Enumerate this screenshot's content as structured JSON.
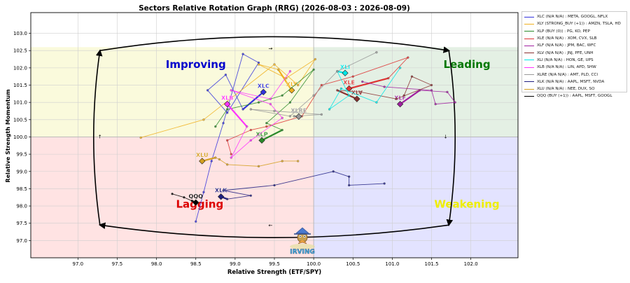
{
  "chart_data": {
    "type": "scatter",
    "title": "Sectors Relative Rotation Graph (RRG) (2026-08-03 : 2026-08-09)",
    "xlabel": "Relative Strength (ETF/SPY)",
    "ylabel": "Relative Strength Momentum",
    "xlim": [
      96.4,
      102.6
    ],
    "ylim": [
      96.5,
      103.6
    ],
    "xticks": [
      97.0,
      97.5,
      98.0,
      98.5,
      99.0,
      99.5,
      100.0,
      100.5,
      101.0,
      101.5,
      102.0
    ],
    "yticks": [
      97.0,
      97.5,
      98.0,
      98.5,
      99.0,
      99.5,
      100.0,
      100.5,
      101.0,
      101.5,
      102.0,
      102.5,
      103.0
    ],
    "grid": true,
    "legend_position": "outside-right",
    "quadrants": [
      {
        "name": "Improving",
        "color": "#0000cc",
        "bg": "#fafadc",
        "label_x": 98.5,
        "label_y": 102.1
      },
      {
        "name": "Leading",
        "color": "#007700",
        "bg": "#e4f0e4",
        "label_x": 101.95,
        "label_y": 102.1
      },
      {
        "name": "Lagging",
        "color": "#dd0000",
        "bg": "#ffe3e3",
        "label_x": 98.55,
        "label_y": 98.05
      },
      {
        "name": "Weakening",
        "color": "#eeee00",
        "bg": "#e3e3ff",
        "label_x": 101.95,
        "label_y": 98.05
      }
    ],
    "series": [
      {
        "name": "XLC (N/A N/A) : META, GOOGL, NFLX",
        "label": "XLC",
        "color": "#3333dd",
        "points": [
          [
            98.5,
            97.55
          ],
          [
            98.6,
            98.4
          ],
          [
            98.7,
            99.3
          ],
          [
            98.85,
            100.4
          ],
          [
            99.1,
            102.4
          ],
          [
            99.3,
            102.15
          ],
          [
            98.9,
            100.7
          ],
          [
            98.65,
            101.35
          ],
          [
            98.88,
            101.8
          ],
          [
            99.1,
            100.8
          ],
          [
            99.36,
            101.3
          ]
        ]
      },
      {
        "name": "XLY (STRONG_BUY (+1)) : AMZN, TSLA, HD",
        "label": "XLY",
        "color": "#f0b020",
        "points": [
          [
            97.8,
            99.98
          ],
          [
            98.6,
            100.5
          ],
          [
            99.5,
            102.1
          ],
          [
            99.8,
            101.5
          ],
          [
            100.02,
            102.25
          ],
          [
            99.65,
            101.7
          ],
          [
            99.3,
            102.1
          ],
          [
            99.55,
            101.95
          ],
          [
            99.72,
            101.35
          ]
        ]
      },
      {
        "name": "XLP (BUY (0)) : PG, KO, PEP",
        "label": "XLP",
        "color": "#2a8a2a",
        "points": [
          [
            98.75,
            100.3
          ],
          [
            98.9,
            100.8
          ],
          [
            99.3,
            101.0
          ],
          [
            99.6,
            101.2
          ],
          [
            100.0,
            101.95
          ],
          [
            99.7,
            101.0
          ],
          [
            99.4,
            100.4
          ],
          [
            99.6,
            100.2
          ],
          [
            99.34,
            99.9
          ]
        ]
      },
      {
        "name": "XLE (N/A N/A) : XOM, CVX, SLB",
        "label": "XLE",
        "color": "#dd3333",
        "points": [
          [
            98.95,
            99.5
          ],
          [
            98.9,
            99.9
          ],
          [
            99.2,
            100.2
          ],
          [
            99.4,
            100.3
          ],
          [
            99.85,
            100.6
          ],
          [
            100.1,
            101.5
          ],
          [
            100.5,
            101.75
          ],
          [
            101.2,
            102.3
          ],
          [
            100.95,
            101.7
          ],
          [
            100.45,
            101.4
          ]
        ]
      },
      {
        "name": "XLF (N/A N/A) : JPM, BAC, WFC",
        "label": "XLF",
        "color": "#a020a0",
        "points": [
          [
            100.62,
            101.6
          ],
          [
            100.9,
            101.45
          ],
          [
            101.5,
            101.35
          ],
          [
            101.55,
            100.95
          ],
          [
            101.8,
            101.0
          ],
          [
            101.7,
            101.3
          ],
          [
            101.35,
            101.35
          ],
          [
            101.1,
            100.95
          ]
        ]
      },
      {
        "name": "XLV (N/A N/A) : JNJ, PFE, UNH",
        "label": "XLV",
        "color": "#8a3030",
        "points": [
          [
            101.15,
            101.2
          ],
          [
            101.25,
            101.75
          ],
          [
            101.5,
            101.5
          ],
          [
            101.05,
            101.1
          ],
          [
            100.6,
            101.3
          ],
          [
            100.3,
            101.35
          ],
          [
            100.55,
            101.1
          ]
        ]
      },
      {
        "name": "XLI (N/A N/A) : HON, GE, UPS",
        "label": "XLI",
        "color": "#00e8e8",
        "points": [
          [
            101.1,
            102.0
          ],
          [
            100.8,
            101.0
          ],
          [
            100.35,
            101.4
          ],
          [
            100.2,
            100.8
          ],
          [
            100.45,
            101.2
          ],
          [
            100.3,
            101.9
          ],
          [
            100.4,
            101.85
          ]
        ]
      },
      {
        "name": "XLB (N/A N/A) : LIN, APD, SHW",
        "label": "XLB",
        "color": "#ff33ff",
        "points": [
          [
            99.7,
            101.9
          ],
          [
            99.45,
            101.1
          ],
          [
            98.95,
            101.35
          ],
          [
            99.45,
            100.95
          ],
          [
            99.6,
            100.55
          ],
          [
            99.2,
            99.9
          ],
          [
            98.95,
            99.4
          ],
          [
            99.15,
            100.3
          ],
          [
            98.9,
            100.95
          ]
        ]
      },
      {
        "name": "XLRE (N/A N/A) : AMT, PLD, CCI",
        "label": "XLRE",
        "color": "#999999",
        "points": [
          [
            100.8,
            102.45
          ],
          [
            100.3,
            101.9
          ],
          [
            100.0,
            101.2
          ],
          [
            99.7,
            100.6
          ],
          [
            99.2,
            100.8
          ],
          [
            99.5,
            100.75
          ],
          [
            100.1,
            100.65
          ],
          [
            99.75,
            100.6
          ],
          [
            99.81,
            100.59
          ]
        ]
      },
      {
        "name": "XLK (N/A N/A) : AAPL, MSFT, NVDA",
        "label": "XLK",
        "color": "#202080",
        "points": [
          [
            100.9,
            98.65
          ],
          [
            100.45,
            98.6
          ],
          [
            100.45,
            98.85
          ],
          [
            100.25,
            99.0
          ],
          [
            99.5,
            98.6
          ],
          [
            98.85,
            98.45
          ],
          [
            99.2,
            98.3
          ],
          [
            98.9,
            98.2
          ],
          [
            98.82,
            98.27
          ]
        ]
      },
      {
        "name": "XLU (N/A N/A) : NEE, DUX, SO",
        "label": "XLU",
        "color": "#d4a020",
        "points": [
          [
            99.8,
            99.3
          ],
          [
            99.6,
            99.3
          ],
          [
            99.3,
            99.15
          ],
          [
            98.9,
            99.2
          ],
          [
            98.8,
            99.35
          ],
          [
            98.75,
            99.4
          ],
          [
            98.58,
            99.3
          ]
        ]
      },
      {
        "name": "QQQ (BUY (+1)) : AAPL, MSFT, GOOGL",
        "label": "QQQ",
        "color": "#000000",
        "points": [
          [
            98.2,
            98.35
          ],
          [
            98.35,
            98.25
          ],
          [
            98.45,
            98.15
          ],
          [
            98.5,
            98.1
          ]
        ]
      }
    ],
    "annotation": "IRVING"
  }
}
